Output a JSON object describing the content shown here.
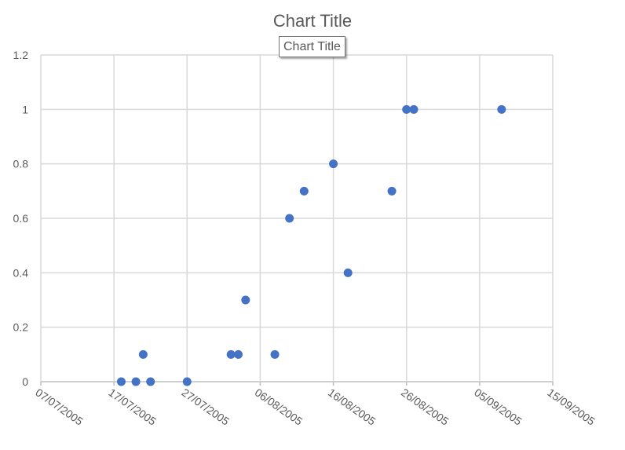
{
  "chart_data": {
    "type": "scatter",
    "title": "Chart Title",
    "tooltip": "Chart Title",
    "xlabel": "",
    "ylabel": "",
    "xlim": [
      "2005-07-07",
      "2005-09-15"
    ],
    "ylim": [
      0,
      1.2
    ],
    "grid": true,
    "legend": "none",
    "marker_color": "#4472C4",
    "x_ticks": [
      "07/07/2005",
      "17/07/2005",
      "27/07/2005",
      "06/08/2005",
      "16/08/2005",
      "26/08/2005",
      "05/09/2005",
      "15/09/2005"
    ],
    "y_ticks": [
      "0",
      "0.2",
      "0.4",
      "0.6",
      "0.8",
      "1",
      "1.2"
    ],
    "points": [
      {
        "x": "2005-07-18",
        "y": 0
      },
      {
        "x": "2005-07-20",
        "y": 0
      },
      {
        "x": "2005-07-21",
        "y": 0.1
      },
      {
        "x": "2005-07-22",
        "y": 0
      },
      {
        "x": "2005-07-27",
        "y": 0
      },
      {
        "x": "2005-08-02",
        "y": 0.1
      },
      {
        "x": "2005-08-03",
        "y": 0.1
      },
      {
        "x": "2005-08-04",
        "y": 0.3
      },
      {
        "x": "2005-08-08",
        "y": 0.1
      },
      {
        "x": "2005-08-10",
        "y": 0.6
      },
      {
        "x": "2005-08-12",
        "y": 0.7
      },
      {
        "x": "2005-08-16",
        "y": 0.8
      },
      {
        "x": "2005-08-18",
        "y": 0.4
      },
      {
        "x": "2005-08-24",
        "y": 0.7
      },
      {
        "x": "2005-08-26",
        "y": 1
      },
      {
        "x": "2005-08-27",
        "y": 1
      },
      {
        "x": "2005-09-08",
        "y": 1
      }
    ]
  }
}
